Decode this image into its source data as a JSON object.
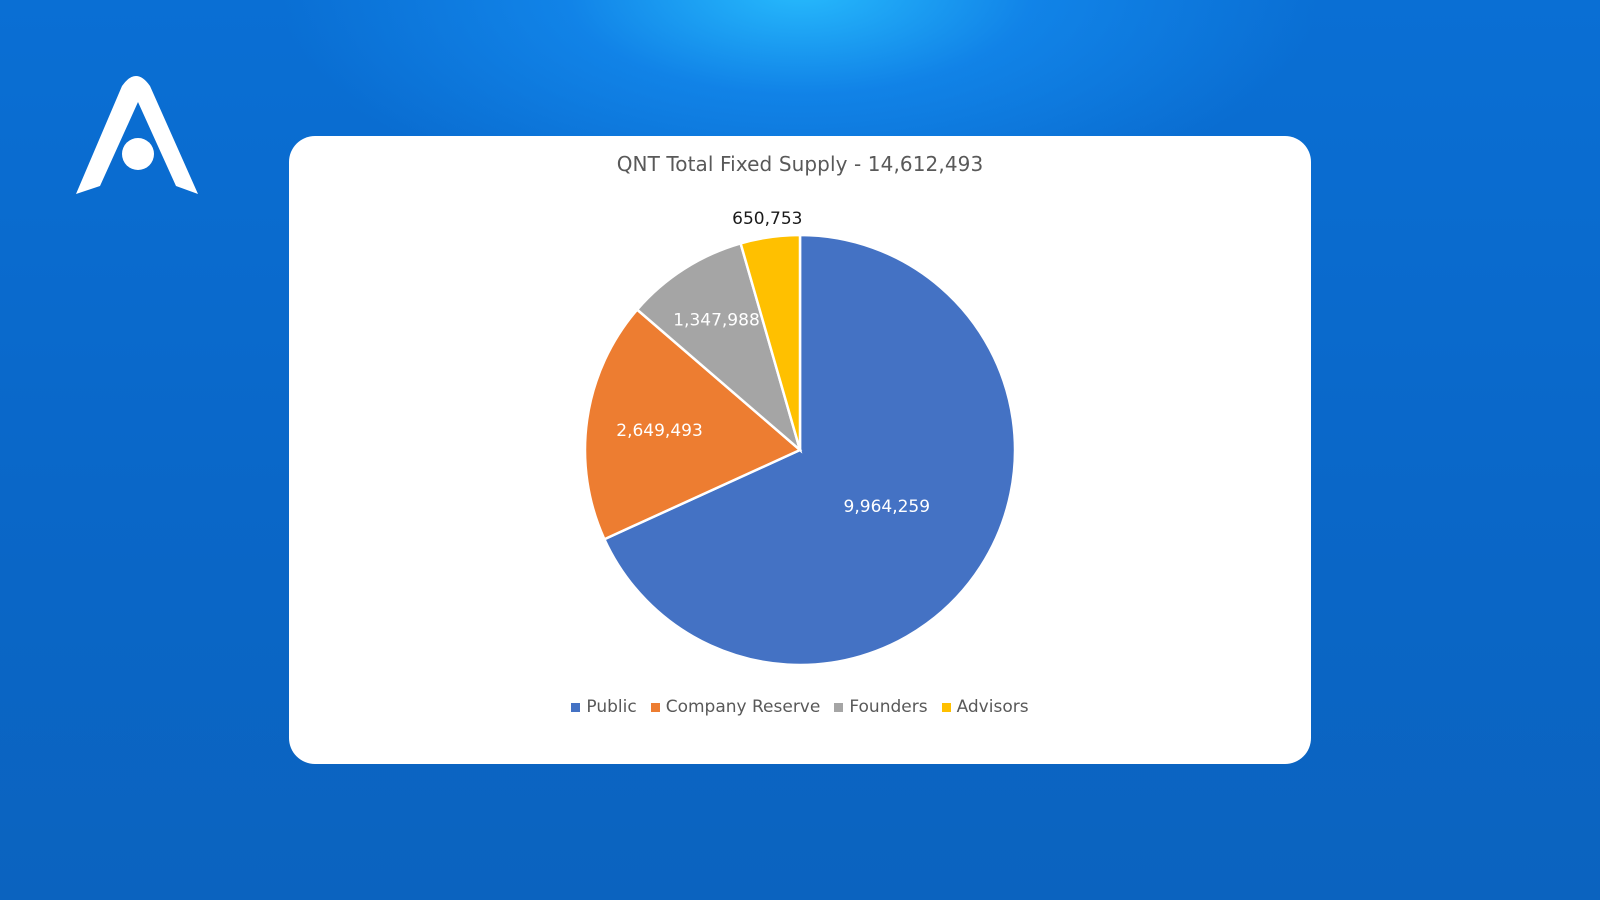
{
  "brand": {
    "logo_icon": "arch-a-logo-icon"
  },
  "colors": {
    "Public": "#4472C4",
    "Company Reserve": "#ED7D31",
    "Founders": "#A5A5A5",
    "Advisors": "#FFC000"
  },
  "chart_data": {
    "type": "pie",
    "title": "QNT Total Fixed Supply - 14,612,493",
    "categories": [
      "Public",
      "Company Reserve",
      "Founders",
      "Advisors"
    ],
    "values": [
      9964259,
      2649493,
      1347988,
      650753
    ],
    "data_labels": [
      "9,964,259",
      "2,649,493",
      "1,347,988",
      "650,753"
    ],
    "start_angle": "12 o'clock",
    "direction": "clockwise",
    "legend": "bottom"
  }
}
